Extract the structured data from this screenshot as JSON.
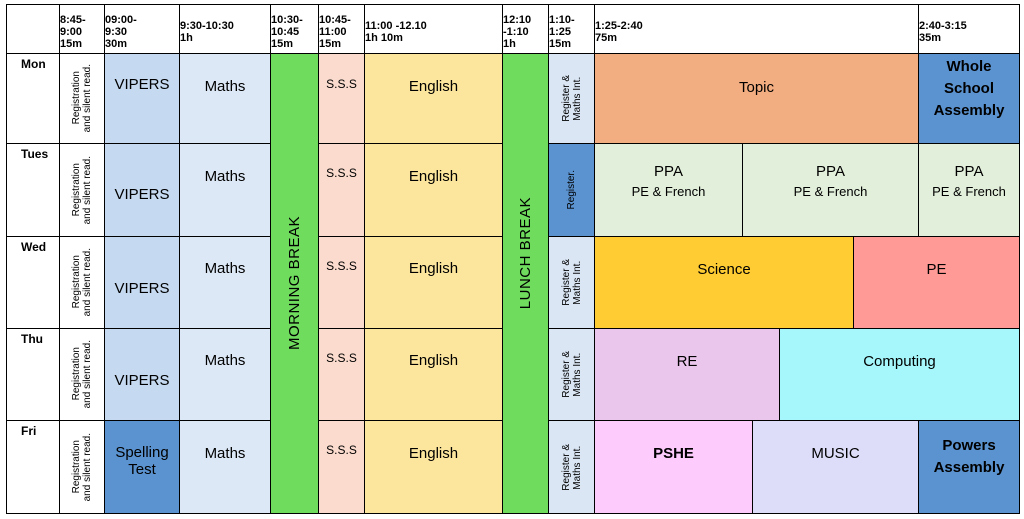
{
  "headers": {
    "c1": [
      "8:45-",
      "9:00",
      "15m"
    ],
    "c2": [
      "09:00-",
      "9:30",
      "30m"
    ],
    "c3": [
      "9:30-10:30",
      "1h"
    ],
    "c4": [
      "10:30-",
      "10:45",
      "15m"
    ],
    "c5": [
      "10:45-",
      "11:00",
      "15m"
    ],
    "c6": [
      "11:00 -12.10",
      "1h 10m"
    ],
    "c7": [
      "12:10",
      "-1:10",
      "1h"
    ],
    "c8": [
      "1:10-",
      "1:25",
      "15m"
    ],
    "c9": [
      "1:25-2:40",
      "75m"
    ],
    "c10": [
      "2:40-3:15",
      "35m"
    ]
  },
  "days": [
    "Mon",
    "Tues",
    "Wed",
    "Thu",
    "Fri"
  ],
  "registration": [
    "Registration",
    "and silent read."
  ],
  "vipers": "VIPERS",
  "spelling": [
    "Spelling",
    "Test"
  ],
  "maths": "Maths",
  "morning_break": "MORNING BREAK",
  "sss": "S.S.S",
  "english": "English",
  "lunch_break": "LUNCH BREAK",
  "register_maths": [
    "Register &",
    "Maths Int."
  ],
  "register_only": "Register.",
  "afternoon": {
    "mon_topic": "Topic",
    "mon_assembly": [
      "Whole",
      "School",
      "Assembly"
    ],
    "tue_ppa": "PPA",
    "tue_ppa_sub": "PE & French",
    "wed_science": "Science",
    "wed_pe": "PE",
    "thu_re": "RE",
    "thu_computing": "Computing",
    "fri_pshe": "PSHE",
    "fri_music": "MUSIC",
    "fri_powers": [
      "Powers",
      "Assembly"
    ]
  },
  "colors": {
    "registration": "#ffffff",
    "vipers": "#c5d9f0",
    "spelling": "#5b93d0",
    "maths": "#dde8f6",
    "morning_break": "#6fdc5e",
    "sss": "#fadbcd",
    "english": "#fce59c",
    "lunch_break": "#6fdc5e",
    "register": "#dae6f4",
    "register_tue": "#5b93d0",
    "topic": "#f2ad80",
    "assembly": "#5b93d0",
    "ppa": "#e2efda",
    "science": "#ffcc33",
    "pe": "#ff9a96",
    "re": "#ebc6ec",
    "computing": "#a5f7fb",
    "pshe": "#fdccfd",
    "music": "#ddddfa"
  }
}
